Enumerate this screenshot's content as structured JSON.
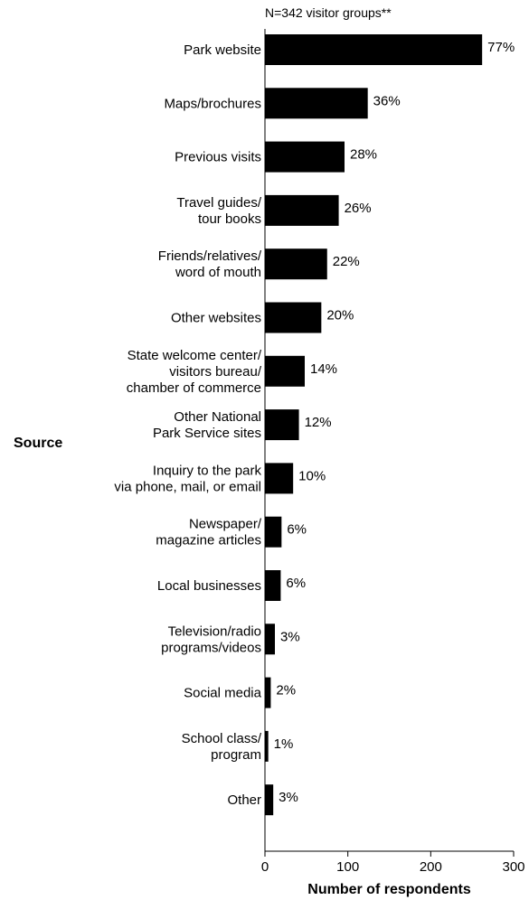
{
  "chart_data": {
    "type": "bar",
    "orientation": "horizontal",
    "note": "N=342 visitor groups**",
    "ylabel": "Source",
    "xlabel": "Number of respondents",
    "xlim": [
      0,
      300
    ],
    "xticks": [
      "0",
      "100",
      "200",
      "300"
    ],
    "bar_color": "#000000",
    "categories": [
      [
        "Park website"
      ],
      [
        "Maps/brochures"
      ],
      [
        "Previous visits"
      ],
      [
        "Travel guides/",
        "tour books"
      ],
      [
        "Friends/relatives/",
        "word of mouth"
      ],
      [
        "Other websites"
      ],
      [
        "State welcome center/",
        "visitors bureau/",
        "chamber of commerce"
      ],
      [
        "Other National",
        "Park Service sites"
      ],
      [
        "Inquiry to the park",
        "via phone, mail, or email"
      ],
      [
        "Newspaper/",
        "magazine articles"
      ],
      [
        "Local businesses"
      ],
      [
        "Television/radio",
        "programs/videos"
      ],
      [
        "Social media"
      ],
      [
        "School class/",
        "program"
      ],
      [
        "Other"
      ]
    ],
    "values": [
      262,
      124,
      96,
      89,
      75,
      68,
      48,
      41,
      34,
      20,
      19,
      12,
      7,
      4,
      10
    ],
    "labels": [
      "77%",
      "36%",
      "28%",
      "26%",
      "22%",
      "20%",
      "14%",
      "12%",
      "10%",
      "6%",
      "6%",
      "3%",
      "2%",
      "1%",
      "3%"
    ]
  }
}
